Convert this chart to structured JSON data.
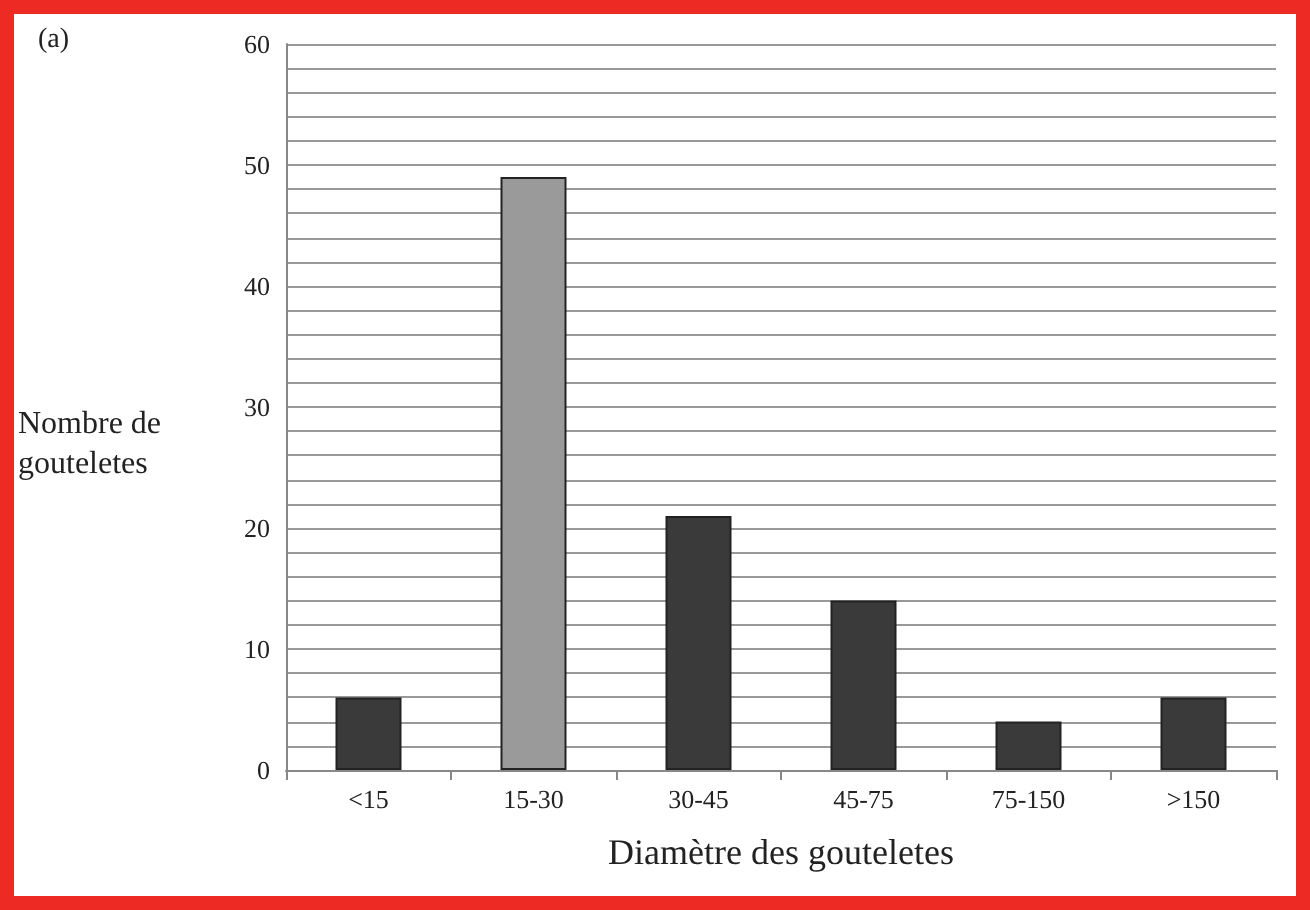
{
  "chart_data": {
    "type": "bar",
    "xlabel": "Diamètre des gouteletes",
    "ylabel": "Nombre de gouteletes",
    "annotations": [
      "(a)"
    ],
    "categories": [
      "<15",
      "15-30",
      "30-45",
      "45-75",
      "75-150",
      ">150"
    ],
    "values": [
      6,
      49,
      21,
      14,
      4,
      6
    ],
    "colors": [
      "#3a3a3a",
      "#9a9a9a",
      "#3a3a3a",
      "#3a3a3a",
      "#3a3a3a",
      "#3a3a3a"
    ],
    "ylim": [
      0,
      60
    ],
    "yticks": [
      0,
      {
        "value": 2,
        "label": null
      },
      {
        "value": 4,
        "label": null
      },
      {
        "value": 6,
        "label": null
      },
      {
        "value": 8,
        "label": null
      },
      10,
      {
        "value": 12,
        "label": null
      },
      {
        "value": 14,
        "label": null
      },
      {
        "value": 16,
        "label": null
      },
      {
        "value": 18,
        "label": null
      },
      20,
      {
        "value": 22,
        "label": null
      },
      {
        "value": 24,
        "label": null
      },
      {
        "value": 26,
        "label": null
      },
      {
        "value": 28,
        "label": null
      },
      30,
      {
        "value": 32,
        "label": null
      },
      {
        "value": 34,
        "label": null
      },
      {
        "value": 36,
        "label": null
      },
      {
        "value": 38,
        "label": null
      },
      40,
      {
        "value": 42,
        "label": null
      },
      {
        "value": 44,
        "label": null
      },
      {
        "value": 46,
        "label": null
      },
      {
        "value": 48,
        "label": null
      },
      50,
      {
        "value": 52,
        "label": null
      },
      {
        "value": 54,
        "label": null
      },
      {
        "value": 56,
        "label": null
      },
      {
        "value": 58,
        "label": null
      },
      60
    ],
    "grid": "y"
  }
}
